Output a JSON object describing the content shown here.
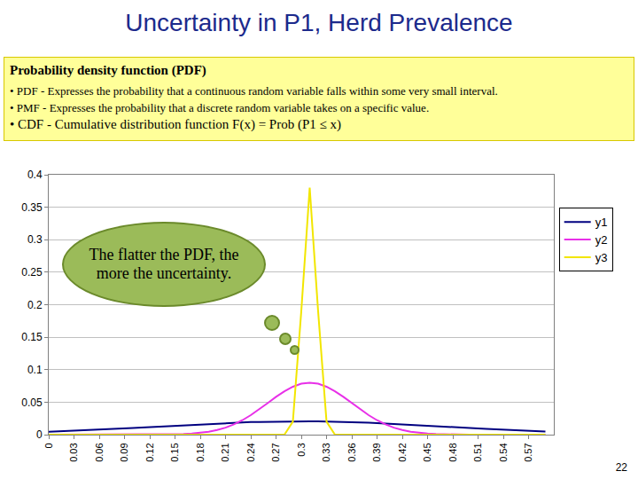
{
  "chart_data": {
    "type": "line",
    "title": "Uncertainty in P1, Herd Prevalence",
    "x": [
      0,
      0.01,
      0.02,
      0.03,
      0.04,
      0.05,
      0.06,
      0.07,
      0.08,
      0.09,
      0.1,
      0.11,
      0.12,
      0.13,
      0.14,
      0.15,
      0.16,
      0.17,
      0.18,
      0.19,
      0.2,
      0.21,
      0.22,
      0.23,
      0.24,
      0.25,
      0.26,
      0.27,
      0.28,
      0.29,
      0.3,
      0.31,
      0.32,
      0.33,
      0.34,
      0.35,
      0.36,
      0.37,
      0.38,
      0.39,
      0.4,
      0.41,
      0.42,
      0.43,
      0.44,
      0.45,
      0.46,
      0.47,
      0.48,
      0.49,
      0.5,
      0.51,
      0.52,
      0.53,
      0.54,
      0.55,
      0.56,
      0.57,
      0.58,
      0.59
    ],
    "series": [
      {
        "name": "y1",
        "color": "#000080",
        "values": [
          0.0043,
          0.0048,
          0.0053,
          0.0058,
          0.0064,
          0.007,
          0.0076,
          0.0082,
          0.0089,
          0.0096,
          0.0103,
          0.011,
          0.0117,
          0.0124,
          0.0132,
          0.0139,
          0.0146,
          0.0153,
          0.016,
          0.0166,
          0.0172,
          0.0178,
          0.0184,
          0.0188,
          0.0193,
          0.0196,
          0.0199,
          0.0202,
          0.0204,
          0.0205,
          0.0205,
          0.0205,
          0.0204,
          0.0202,
          0.0199,
          0.0196,
          0.0193,
          0.0188,
          0.0184,
          0.0178,
          0.0172,
          0.0166,
          0.016,
          0.0153,
          0.0146,
          0.0139,
          0.0132,
          0.0124,
          0.0117,
          0.011,
          0.0103,
          0.0096,
          0.0089,
          0.0082,
          0.0076,
          0.007,
          0.0064,
          0.0058,
          0.0053,
          0.0048
        ]
      },
      {
        "name": "y2",
        "color": "#e830e8",
        "values": [
          0,
          0,
          0,
          0,
          0,
          0,
          0,
          0,
          0,
          0,
          0,
          0,
          0,
          0.0001,
          0.0003,
          0.0005,
          0.0009,
          0.0016,
          0.0027,
          0.0045,
          0.0071,
          0.0108,
          0.0158,
          0.0222,
          0.03,
          0.0389,
          0.0485,
          0.0581,
          0.0668,
          0.0738,
          0.0784,
          0.08,
          0.0784,
          0.0738,
          0.0668,
          0.0581,
          0.0485,
          0.0389,
          0.03,
          0.0222,
          0.0158,
          0.0108,
          0.0071,
          0.0045,
          0.0027,
          0.0016,
          0.0009,
          0.0005,
          0.0003,
          0.0001,
          0,
          0,
          0,
          0,
          0,
          0,
          0,
          0,
          0,
          0
        ]
      },
      {
        "name": "y3",
        "color": "#f2e600",
        "values": [
          0,
          0,
          0,
          0,
          0,
          0,
          0,
          0,
          0,
          0,
          0,
          0,
          0,
          0,
          0,
          0,
          0,
          0,
          0,
          0,
          0,
          0,
          0,
          0,
          0,
          0,
          0,
          0,
          0,
          0.02,
          0.19,
          0.38,
          0.19,
          0.02,
          0,
          0,
          0,
          0,
          0,
          0,
          0,
          0,
          0,
          0,
          0,
          0,
          0,
          0,
          0,
          0,
          0,
          0,
          0,
          0,
          0,
          0,
          0,
          0,
          0,
          0
        ]
      }
    ],
    "xlim": [
      0,
      0.6
    ],
    "xticks": [
      0,
      0.03,
      0.06,
      0.09,
      0.12,
      0.15,
      0.18,
      0.21,
      0.24,
      0.27,
      0.3,
      0.33,
      0.36,
      0.39,
      0.42,
      0.45,
      0.48,
      0.51,
      0.54,
      0.57
    ],
    "ylim": [
      0,
      0.4
    ],
    "yticks": [
      0,
      0.05,
      0.1,
      0.15,
      0.2,
      0.25,
      0.3,
      0.35,
      0.4
    ],
    "grid": true,
    "legend": "right",
    "annotations": [
      "The flatter the PDF, the more the uncertainty."
    ]
  },
  "info_box": {
    "heading": "Probability density function (PDF)",
    "items": [
      "• PDF - Expresses the probability that a continuous random variable falls within some very small interval.",
      "• PMF - Expresses the probability that a discrete random variable takes on a specific value.",
      "• CDF - Cumulative distribution function F(x) = Prob (P1 ≤ x)"
    ]
  },
  "page_number": "22"
}
